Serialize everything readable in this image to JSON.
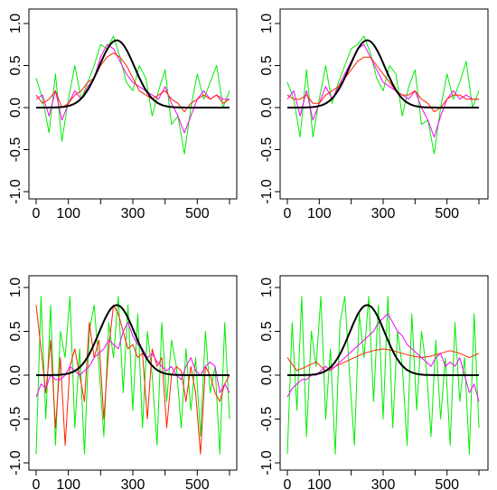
{
  "chart_data": [
    {
      "type": "line",
      "panel": "top-left",
      "xlim": [
        0,
        600
      ],
      "ylim": [
        -1.0,
        1.0
      ],
      "x_ticks": [
        "0",
        "100",
        "300",
        "500"
      ],
      "y_ticks": [
        "-1.0",
        "-0.5",
        "0.0",
        "0.5",
        "1.0"
      ],
      "x_tick_values": [
        0,
        100,
        300,
        500
      ],
      "y_tick_values": [
        -1.0,
        -0.5,
        0.0,
        0.5,
        1.0
      ],
      "bump": {
        "color": "#000000",
        "height": 0.8,
        "center": 250,
        "sigma": 55
      },
      "series": [
        {
          "color": "#00ee00",
          "x": [
            0,
            20,
            40,
            60,
            80,
            100,
            120,
            140,
            160,
            180,
            200,
            220,
            240,
            260,
            280,
            300,
            320,
            340,
            360,
            380,
            400,
            420,
            440,
            460,
            480,
            500,
            520,
            540,
            560,
            580,
            600
          ],
          "values": [
            0.35,
            0.1,
            -0.3,
            0.4,
            -0.4,
            0.1,
            0.5,
            0.1,
            0.3,
            0.5,
            0.75,
            0.7,
            0.85,
            0.6,
            0.3,
            0.2,
            0.5,
            0.35,
            -0.1,
            0.2,
            0.45,
            -0.2,
            -0.1,
            -0.55,
            0.0,
            0.4,
            0.1,
            0.3,
            0.5,
            0.0,
            0.2
          ]
        },
        {
          "color": "#ff00ff",
          "x": [
            0,
            20,
            40,
            60,
            80,
            100,
            120,
            140,
            160,
            180,
            200,
            220,
            240,
            260,
            280,
            300,
            320,
            340,
            360,
            380,
            400,
            420,
            440,
            460,
            480,
            500,
            520,
            540,
            560,
            580,
            600
          ],
          "values": [
            0.1,
            0.15,
            -0.1,
            0.2,
            -0.15,
            0.05,
            0.2,
            0.1,
            0.25,
            0.35,
            0.6,
            0.75,
            0.7,
            0.55,
            0.4,
            0.3,
            0.25,
            0.2,
            0.15,
            0.1,
            0.25,
            0.05,
            -0.1,
            -0.3,
            -0.1,
            0.1,
            0.2,
            0.1,
            0.15,
            0.1,
            0.1
          ]
        },
        {
          "color": "#ff2200",
          "x": [
            0,
            20,
            40,
            60,
            80,
            100,
            120,
            140,
            160,
            180,
            200,
            220,
            240,
            260,
            280,
            300,
            320,
            340,
            360,
            380,
            400,
            420,
            440,
            460,
            480,
            500,
            520,
            540,
            560,
            580,
            600
          ],
          "values": [
            0.15,
            0.05,
            0.1,
            0.2,
            0.0,
            0.05,
            0.15,
            0.2,
            0.3,
            0.35,
            0.5,
            0.6,
            0.65,
            0.6,
            0.5,
            0.35,
            0.2,
            0.15,
            0.1,
            0.15,
            0.2,
            0.1,
            0.05,
            -0.05,
            0.05,
            0.1,
            0.15,
            0.1,
            0.15,
            0.05,
            0.1
          ]
        }
      ]
    },
    {
      "type": "line",
      "panel": "top-right",
      "xlim": [
        0,
        600
      ],
      "ylim": [
        -1.0,
        1.0
      ],
      "x_ticks": [
        "0",
        "100",
        "300",
        "500"
      ],
      "y_ticks": [
        "-1.0",
        "-0.5",
        "0.0",
        "0.5",
        "1.0"
      ],
      "x_tick_values": [
        0,
        100,
        300,
        500
      ],
      "y_tick_values": [
        -1.0,
        -0.5,
        0.0,
        0.5,
        1.0
      ],
      "bump": {
        "color": "#000000",
        "height": 0.8,
        "center": 250,
        "sigma": 55
      },
      "series": [
        {
          "color": "#00ee00",
          "x": [
            0,
            20,
            40,
            60,
            80,
            100,
            120,
            140,
            160,
            180,
            200,
            220,
            240,
            260,
            280,
            300,
            320,
            340,
            360,
            380,
            400,
            420,
            440,
            460,
            480,
            500,
            520,
            540,
            560,
            580,
            600
          ],
          "values": [
            0.3,
            0.1,
            -0.35,
            0.45,
            -0.35,
            0.1,
            0.5,
            0.05,
            0.3,
            0.5,
            0.7,
            0.75,
            0.85,
            0.65,
            0.35,
            0.2,
            0.5,
            0.4,
            -0.1,
            0.25,
            0.45,
            -0.2,
            -0.15,
            -0.55,
            0.0,
            0.4,
            0.1,
            0.3,
            0.55,
            0.0,
            0.2
          ]
        },
        {
          "color": "#ff00ff",
          "x": [
            0,
            20,
            40,
            60,
            80,
            100,
            120,
            140,
            160,
            180,
            200,
            220,
            240,
            260,
            280,
            300,
            320,
            340,
            360,
            380,
            400,
            420,
            440,
            460,
            480,
            500,
            520,
            540,
            560,
            580,
            600
          ],
          "values": [
            0.1,
            0.2,
            -0.1,
            0.2,
            -0.15,
            0.05,
            0.25,
            0.1,
            0.25,
            0.4,
            0.55,
            0.7,
            0.75,
            0.6,
            0.45,
            0.3,
            0.25,
            0.2,
            0.15,
            0.1,
            0.2,
            0.0,
            -0.15,
            -0.35,
            -0.1,
            0.1,
            0.2,
            0.1,
            0.15,
            0.1,
            0.1
          ]
        },
        {
          "color": "#ff2200",
          "x": [
            0,
            20,
            40,
            60,
            80,
            100,
            120,
            140,
            160,
            180,
            200,
            220,
            240,
            260,
            280,
            300,
            320,
            340,
            360,
            380,
            400,
            420,
            440,
            460,
            480,
            500,
            520,
            540,
            560,
            580,
            600
          ],
          "values": [
            0.15,
            0.1,
            0.1,
            0.15,
            0.05,
            0.05,
            0.15,
            0.2,
            0.25,
            0.35,
            0.45,
            0.55,
            0.6,
            0.6,
            0.5,
            0.4,
            0.3,
            0.2,
            0.15,
            0.15,
            0.2,
            0.1,
            0.05,
            -0.05,
            0.0,
            0.1,
            0.15,
            0.15,
            0.1,
            0.1,
            0.1
          ]
        }
      ]
    },
    {
      "type": "line",
      "panel": "bottom-left",
      "xlim": [
        0,
        600
      ],
      "ylim": [
        -1.0,
        1.0
      ],
      "x_ticks": [
        "0",
        "100",
        "300",
        "500"
      ],
      "y_ticks": [
        "-1.0",
        "-0.5",
        "0.0",
        "0.5",
        "1.0"
      ],
      "x_tick_values": [
        0,
        100,
        300,
        500
      ],
      "y_tick_values": [
        -1.0,
        -0.5,
        0.0,
        0.5,
        1.0
      ],
      "bump": {
        "color": "#000000",
        "height": 0.8,
        "center": 250,
        "sigma": 55
      },
      "series": [
        {
          "color": "#00ee00",
          "x": [
            0,
            15,
            30,
            45,
            60,
            75,
            90,
            105,
            120,
            135,
            150,
            165,
            180,
            195,
            210,
            225,
            240,
            255,
            270,
            285,
            300,
            315,
            330,
            345,
            360,
            375,
            390,
            405,
            420,
            435,
            450,
            465,
            480,
            495,
            510,
            525,
            540,
            555,
            570,
            585,
            600
          ],
          "values": [
            -0.9,
            0.9,
            -0.5,
            0.8,
            -0.8,
            0.5,
            0.2,
            0.9,
            -0.6,
            0.3,
            -0.9,
            0.5,
            0.8,
            0.1,
            -0.7,
            0.6,
            0.2,
            0.9,
            -0.2,
            0.8,
            -0.4,
            0.7,
            -0.6,
            0.5,
            0.0,
            -0.8,
            0.6,
            -0.3,
            0.4,
            0.1,
            -0.6,
            0.3,
            -0.4,
            0.2,
            -0.7,
            0.5,
            -0.2,
            0.1,
            -0.9,
            0.6,
            -0.5
          ]
        },
        {
          "color": "#ff2200",
          "x": [
            0,
            15,
            30,
            45,
            60,
            75,
            90,
            105,
            120,
            135,
            150,
            165,
            180,
            195,
            210,
            225,
            240,
            255,
            270,
            285,
            300,
            315,
            330,
            345,
            360,
            375,
            390,
            405,
            420,
            435,
            450,
            465,
            480,
            495,
            510,
            525,
            540,
            555,
            570,
            585,
            600
          ],
          "values": [
            0.8,
            0.3,
            -0.2,
            0.4,
            -0.6,
            0.2,
            -0.8,
            0.1,
            0.3,
            0.0,
            -0.3,
            0.6,
            0.2,
            0.4,
            -0.5,
            0.3,
            0.8,
            0.7,
            0.5,
            0.3,
            0.35,
            0.2,
            0.25,
            -0.5,
            0.3,
            0.1,
            0.2,
            -0.6,
            0.0,
            0.1,
            0.05,
            -0.3,
            0.1,
            -0.2,
            -0.9,
            0.1,
            0.0,
            -0.2,
            -0.3,
            -0.1,
            0.0
          ]
        },
        {
          "color": "#ff00ff",
          "x": [
            0,
            15,
            30,
            45,
            60,
            75,
            90,
            105,
            120,
            135,
            150,
            165,
            180,
            195,
            210,
            225,
            240,
            255,
            270,
            285,
            300,
            315,
            330,
            345,
            360,
            375,
            390,
            405,
            420,
            435,
            450,
            465,
            480,
            495,
            510,
            525,
            540,
            555,
            570,
            585,
            600
          ],
          "values": [
            -0.25,
            -0.1,
            -0.15,
            0.0,
            -0.05,
            -0.05,
            0.0,
            0.1,
            0.05,
            0.0,
            0.05,
            0.1,
            0.2,
            0.25,
            0.3,
            0.4,
            0.35,
            0.3,
            0.5,
            0.6,
            0.45,
            0.35,
            0.3,
            0.2,
            0.25,
            0.15,
            0.1,
            0.05,
            0.1,
            0.0,
            -0.05,
            0.1,
            0.2,
            0.05,
            0.0,
            0.1,
            0.15,
            0.1,
            -0.2,
            -0.1,
            -0.2
          ]
        }
      ]
    },
    {
      "type": "line",
      "panel": "bottom-right",
      "xlim": [
        0,
        600
      ],
      "ylim": [
        -1.0,
        1.0
      ],
      "x_ticks": [
        "0",
        "100",
        "300",
        "500"
      ],
      "y_ticks": [
        "-1.0",
        "-0.5",
        "0.0",
        "0.5",
        "1.0"
      ],
      "x_tick_values": [
        0,
        100,
        300,
        500
      ],
      "y_tick_values": [
        -1.0,
        -0.5,
        0.0,
        0.5,
        1.0
      ],
      "bump": {
        "color": "#000000",
        "height": 0.8,
        "center": 250,
        "sigma": 55
      },
      "series": [
        {
          "color": "#00ee00",
          "x": [
            0,
            15,
            30,
            45,
            60,
            75,
            90,
            105,
            120,
            135,
            150,
            165,
            180,
            195,
            210,
            225,
            240,
            255,
            270,
            285,
            300,
            315,
            330,
            345,
            360,
            375,
            390,
            405,
            420,
            435,
            450,
            465,
            480,
            495,
            510,
            525,
            540,
            555,
            570,
            585,
            600
          ],
          "values": [
            -0.9,
            0.6,
            -0.4,
            0.9,
            -0.7,
            0.5,
            0.1,
            0.9,
            -0.5,
            0.3,
            -0.9,
            0.6,
            0.9,
            0.0,
            -0.8,
            0.7,
            0.2,
            0.9,
            -0.3,
            0.8,
            -0.5,
            0.9,
            -0.6,
            0.5,
            0.1,
            -0.8,
            0.7,
            -0.4,
            0.5,
            0.1,
            -0.7,
            0.4,
            -0.5,
            0.2,
            -0.8,
            0.6,
            -0.3,
            0.2,
            -0.9,
            0.7,
            -0.6
          ]
        },
        {
          "color": "#ff2200",
          "x": [
            0,
            30,
            60,
            90,
            120,
            150,
            180,
            210,
            240,
            270,
            300,
            330,
            360,
            390,
            420,
            450,
            480,
            510,
            540,
            570,
            600
          ],
          "values": [
            0.2,
            0.05,
            0.1,
            0.15,
            0.05,
            0.1,
            0.15,
            0.2,
            0.25,
            0.28,
            0.3,
            0.28,
            0.25,
            0.22,
            0.2,
            0.22,
            0.25,
            0.28,
            0.25,
            0.2,
            0.25
          ]
        },
        {
          "color": "#ff00ff",
          "x": [
            0,
            15,
            30,
            45,
            60,
            75,
            90,
            105,
            120,
            135,
            150,
            165,
            180,
            195,
            210,
            225,
            240,
            255,
            270,
            285,
            300,
            315,
            330,
            345,
            360,
            375,
            390,
            405,
            420,
            435,
            450,
            465,
            480,
            495,
            510,
            525,
            540,
            555,
            570,
            585,
            600
          ],
          "values": [
            -0.25,
            -0.15,
            -0.1,
            -0.05,
            -0.05,
            0.0,
            0.0,
            0.05,
            0.1,
            0.05,
            0.1,
            0.15,
            0.2,
            0.25,
            0.3,
            0.35,
            0.4,
            0.45,
            0.5,
            0.6,
            0.65,
            0.7,
            0.6,
            0.5,
            0.45,
            0.35,
            0.3,
            0.25,
            0.2,
            0.15,
            0.1,
            0.2,
            0.25,
            0.1,
            0.15,
            0.1,
            0.2,
            0.0,
            -0.2,
            -0.1,
            -0.3
          ]
        }
      ]
    }
  ]
}
